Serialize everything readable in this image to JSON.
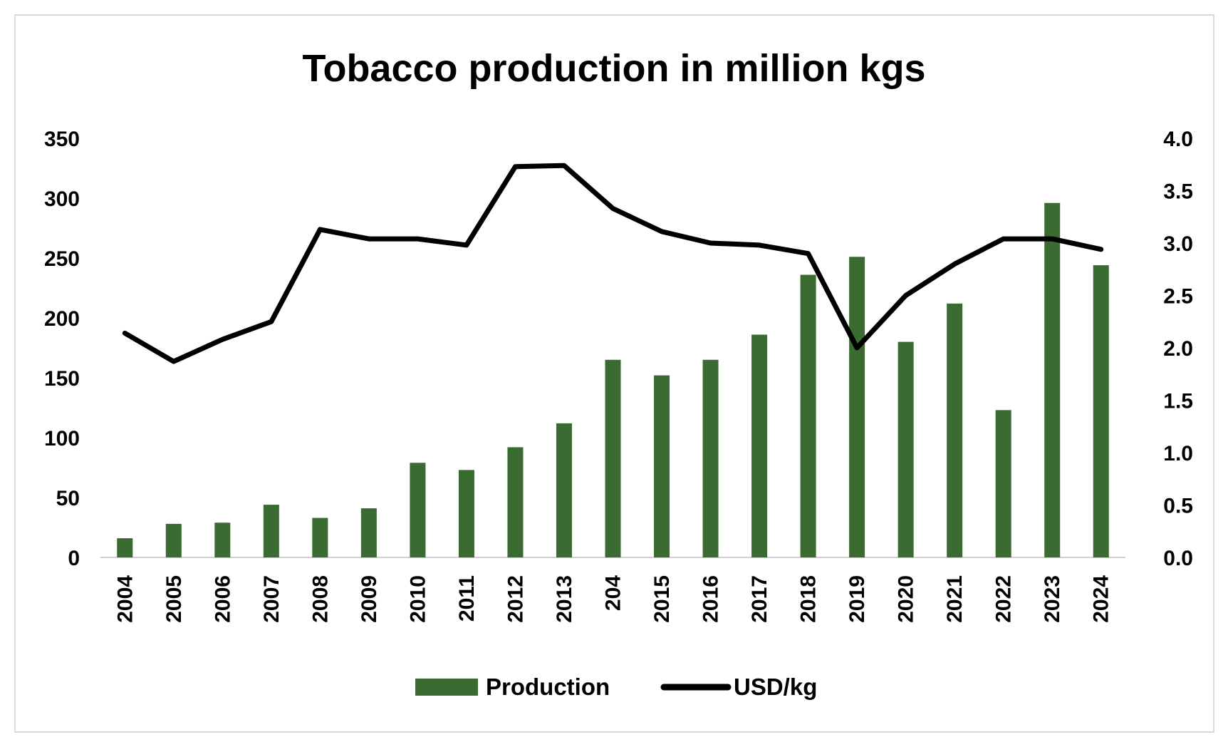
{
  "chart_data": {
    "type": "bar",
    "title": "Tobacco production in million kgs",
    "xlabel": "",
    "ylabel": "",
    "categories": [
      "2004",
      "2005",
      "2006",
      "2007",
      "2008",
      "2009",
      "2010",
      "2011",
      "2012",
      "2013",
      "204",
      "2015",
      "2016",
      "2017",
      "2018",
      "2019",
      "2020",
      "2021",
      "2022",
      "2023",
      "2024"
    ],
    "series": [
      {
        "name": "Production",
        "type": "bar",
        "axis": "left",
        "color": "#3a6b30",
        "values": [
          16,
          28,
          29,
          44,
          33,
          41,
          79,
          73,
          92,
          112,
          165,
          152,
          165,
          186,
          236,
          251,
          180,
          212,
          123,
          296,
          244
        ]
      },
      {
        "name": "USD/kg",
        "type": "line",
        "axis": "right",
        "color": "#000000",
        "values": [
          2.14,
          1.87,
          2.08,
          2.25,
          3.13,
          3.04,
          3.04,
          2.98,
          3.73,
          3.74,
          3.33,
          3.11,
          3.0,
          2.98,
          2.9,
          2.0,
          2.5,
          2.8,
          3.04,
          3.04,
          2.94
        ]
      }
    ],
    "y_left": {
      "range": [
        0,
        350
      ],
      "ticks": [
        "0",
        "50",
        "100",
        "150",
        "200",
        "250",
        "300",
        "350"
      ]
    },
    "y_right": {
      "range": [
        0,
        4
      ],
      "ticks": [
        "0.0",
        "0.5",
        "1.0",
        "1.5",
        "2.0",
        "2.5",
        "3.0",
        "3.5",
        "4.0"
      ]
    },
    "grid": false,
    "legend_position": "bottom-center"
  }
}
